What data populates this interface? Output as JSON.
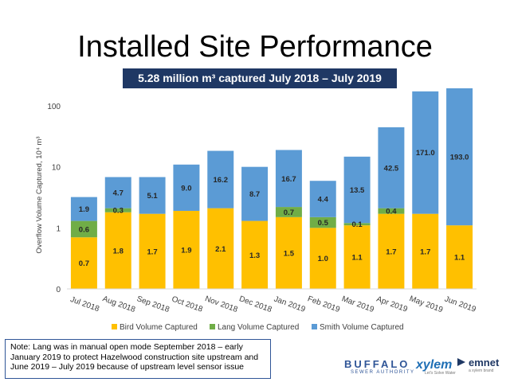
{
  "slide": {
    "title": "Installed Site Performance",
    "subtitle": "5.28 million m³ captured July 2018 – July 2019",
    "note": "Note: Lang was in manual open mode September 2018 – early January 2019 to protect Hazelwood construction site upstream and June 2019 – July 2019 because of upstream level sensor issue"
  },
  "logos": {
    "buffalo": "BUFFALO",
    "buffalo_sub": "SEWER AUTHORITY",
    "xylem": "xylem",
    "xylem_sub": "Let's Solve Water",
    "emnet": "emnet",
    "emnet_sub": "a xylem brand"
  },
  "colors": {
    "bird": "#FFC000",
    "lang": "#70AD47",
    "smith": "#5B9BD5",
    "subtitle_bg": "#1F3864"
  },
  "chart_data": {
    "type": "bar",
    "stacked": true,
    "yscale": "log",
    "ylabel": "Overflow Volume Captured, 10⁴ m³",
    "ylim": [
      0.1,
      200
    ],
    "yticks": [
      0.1,
      1,
      10,
      100
    ],
    "ytick_labels": [
      "0",
      "1",
      "10",
      "100"
    ],
    "grid": false,
    "legend": "bottom",
    "categories": [
      "Jul 2018",
      "Aug 2018",
      "Sep 2018",
      "Oct 2018",
      "Nov 2018",
      "Dec 2018",
      "Jan 2019",
      "Feb 2019",
      "Mar 2019",
      "Apr 2019",
      "May 2019",
      "Jun 2019"
    ],
    "series": [
      {
        "name": "Bird Volume Captured",
        "color": "#FFC000",
        "values": [
          0.7,
          1.8,
          1.7,
          1.9,
          2.1,
          1.3,
          1.5,
          1.0,
          1.1,
          1.7,
          1.7,
          1.1
        ],
        "labels": [
          "0.7",
          "1.8",
          "1.7",
          "1.9",
          "2.1",
          "1.3",
          "1.5",
          "1.0",
          "1.1",
          "1.7",
          "1.7",
          "1.1"
        ]
      },
      {
        "name": "Lang Volume Captured",
        "color": "#70AD47",
        "values": [
          0.6,
          0.3,
          0,
          0,
          0,
          0,
          0.7,
          0.5,
          0.1,
          0.4,
          0,
          0
        ],
        "labels": [
          "0.6",
          "0.3",
          "",
          "",
          "",
          "",
          "0.7",
          "0.5",
          "0.1",
          "0.4",
          "",
          ""
        ]
      },
      {
        "name": "Smith Volume Captured",
        "color": "#5B9BD5",
        "values": [
          1.9,
          4.7,
          5.1,
          9.0,
          16.2,
          8.7,
          16.7,
          4.4,
          13.5,
          42.5,
          171.0,
          193.0
        ],
        "labels": [
          "1.9",
          "4.7",
          "5.1",
          "9.0",
          "16.2",
          "8.7",
          "16.7",
          "4.4",
          "13.5",
          "42.5",
          "171.0",
          "193.0"
        ]
      }
    ]
  }
}
